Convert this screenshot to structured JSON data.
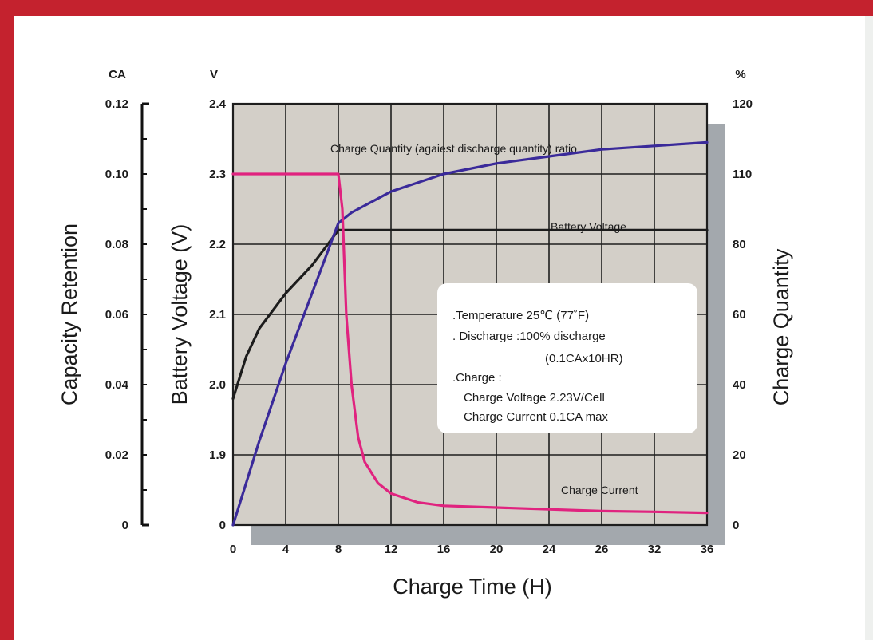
{
  "colors": {
    "frame": "#c4222e",
    "plot_background": "#d3cfc8",
    "shadow": "#a3a8ad",
    "grid": "#1e1e1e",
    "battery_voltage": "#1c1c1c",
    "charge_quantity": "#3a2a9a",
    "charge_current": "#e0237f"
  },
  "chart_data": {
    "type": "line",
    "title": "",
    "xlabel": "Charge Time (H)",
    "x_ticks": [
      "0",
      "4",
      "8",
      "12",
      "16",
      "20",
      "24",
      "26",
      "32",
      "36"
    ],
    "xlim": [
      0,
      36
    ],
    "grid": true,
    "axes": {
      "current": {
        "label": "Capacity Retention",
        "unit": "CA",
        "ticks": [
          "0.12",
          "0.10",
          "0.08",
          "0.06",
          "0.04",
          "0.02",
          "0"
        ],
        "ylim": [
          0,
          0.12
        ]
      },
      "voltage": {
        "label": "Battery Voltage (V)",
        "unit": "V",
        "ticks": [
          "2.4",
          "2.3",
          "2.2",
          "2.1",
          "2.0",
          "1.9",
          "0"
        ],
        "ylim": [
          1.8,
          2.4
        ]
      },
      "quantity": {
        "label": "Charge Quantity",
        "unit": "%",
        "ticks": [
          "120",
          "110",
          "80",
          "60",
          "40",
          "20",
          "0"
        ],
        "ylim": [
          0,
          120
        ]
      }
    },
    "series": [
      {
        "name": "Charge Quantity (agaiest discharge quantity) ratio",
        "axis": "quantity",
        "x": [
          0,
          2,
          4,
          6,
          8,
          9,
          10,
          12,
          16,
          20,
          24,
          28,
          32,
          36
        ],
        "y": [
          0,
          24,
          46,
          66,
          86,
          89,
          91,
          95,
          100,
          103,
          105,
          107,
          108,
          109
        ]
      },
      {
        "name": "Battery Voltage",
        "axis": "voltage",
        "x": [
          0,
          1,
          2,
          4,
          6,
          8,
          9,
          36
        ],
        "y": [
          1.98,
          2.04,
          2.08,
          2.13,
          2.17,
          2.22,
          2.22,
          2.22
        ]
      },
      {
        "name": "Charge Current",
        "axis": "current",
        "x": [
          0,
          8,
          8.3,
          8.6,
          9,
          9.5,
          10,
          11,
          12,
          14,
          16,
          20,
          24,
          28,
          32,
          36
        ],
        "y": [
          0.1,
          0.1,
          0.09,
          0.06,
          0.04,
          0.025,
          0.018,
          0.012,
          0.009,
          0.0065,
          0.0055,
          0.005,
          0.0045,
          0.004,
          0.0038,
          0.0035
        ]
      }
    ],
    "annotation": [
      ".Temperature 25℃ (77˚F)",
      ". Discharge :100% discharge",
      "(0.1CAx10HR)",
      ".Charge :",
      "Charge Voltage 2.23V/Cell",
      "Charge Current 0.1CA max"
    ]
  }
}
